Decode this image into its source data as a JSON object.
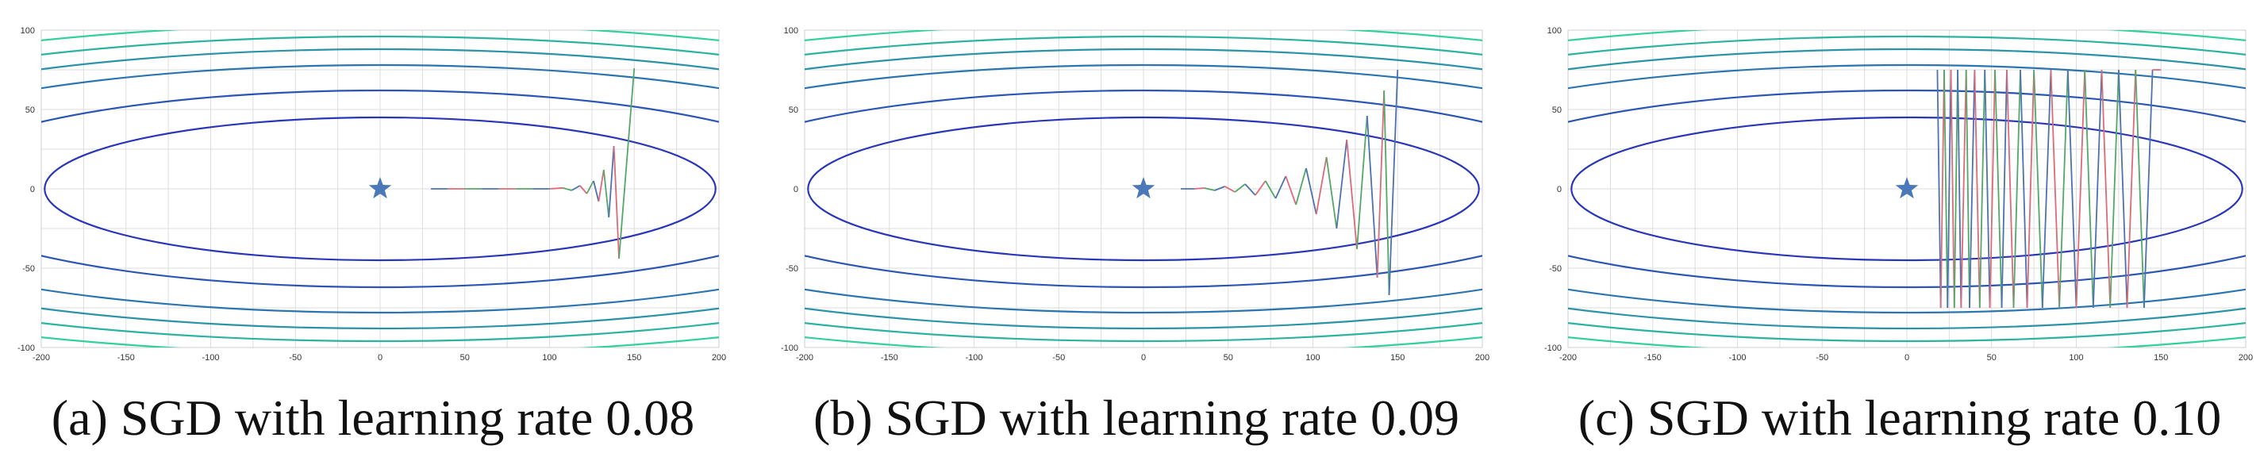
{
  "colors": {
    "grid": "#dddddd",
    "axis_frame": "#cfcfcf",
    "star": "#4a78b8",
    "contours": [
      "#2a36b8",
      "#2a55b4",
      "#2a74b0",
      "#2a93a8",
      "#2bb2a0",
      "#33d09a",
      "#3fe096"
    ],
    "path_segments": [
      "#4c72b0",
      "#dd6a78",
      "#52a866"
    ]
  },
  "contour_levels": [
    45,
    62,
    78,
    88,
    96,
    104,
    112
  ],
  "chart_data": [
    {
      "type": "line",
      "title": "(a) SGD with learning rate 0.08",
      "xlim": [
        -200,
        200
      ],
      "ylim": [
        -100,
        100
      ],
      "xticks": [
        "-200",
        "-150",
        "-100",
        "-50",
        "0",
        "50",
        "100",
        "150",
        "200"
      ],
      "yticks": [
        "100",
        "50",
        "0",
        "-50",
        "-100"
      ],
      "minimum": [
        0,
        0
      ],
      "path": [
        [
          30,
          0
        ],
        [
          40,
          0
        ],
        [
          50,
          0
        ],
        [
          60,
          0
        ],
        [
          70,
          0
        ],
        [
          80,
          0
        ],
        [
          90,
          0
        ],
        [
          100,
          0
        ],
        [
          108,
          0.6
        ],
        [
          113,
          -1
        ],
        [
          118,
          2
        ],
        [
          122,
          -3
        ],
        [
          126,
          5
        ],
        [
          129,
          -8
        ],
        [
          132,
          12
        ],
        [
          135,
          -18
        ],
        [
          138,
          27
        ],
        [
          141,
          -44
        ],
        [
          150,
          76
        ]
      ]
    },
    {
      "type": "line",
      "title": "(b) SGD with learning rate 0.09",
      "xlim": [
        -200,
        200
      ],
      "ylim": [
        -100,
        100
      ],
      "xticks": [
        "-200",
        "-150",
        "-100",
        "-50",
        "0",
        "50",
        "100",
        "150",
        "200"
      ],
      "yticks": [
        "100",
        "50",
        "0",
        "-50",
        "-100"
      ],
      "minimum": [
        0,
        0
      ],
      "path": [
        [
          22,
          0
        ],
        [
          30,
          0
        ],
        [
          36,
          0.5
        ],
        [
          42,
          -1
        ],
        [
          48,
          1.5
        ],
        [
          54,
          -2
        ],
        [
          60,
          3
        ],
        [
          66,
          -4
        ],
        [
          72,
          5
        ],
        [
          78,
          -6
        ],
        [
          84,
          8
        ],
        [
          90,
          -10
        ],
        [
          96,
          13
        ],
        [
          102,
          -16
        ],
        [
          108,
          20
        ],
        [
          114,
          -25
        ],
        [
          120,
          31
        ],
        [
          126,
          -38
        ],
        [
          132,
          46
        ],
        [
          138,
          -56
        ],
        [
          142,
          62
        ],
        [
          145,
          -67
        ],
        [
          150,
          75
        ]
      ]
    },
    {
      "type": "line",
      "title": "(c) SGD with learning rate 0.10",
      "xlim": [
        -200,
        200
      ],
      "ylim": [
        -100,
        100
      ],
      "xticks": [
        "-200",
        "-150",
        "-100",
        "-50",
        "0",
        "50",
        "100",
        "150",
        "200"
      ],
      "yticks": [
        "100",
        "50",
        "0",
        "-50",
        "-100"
      ],
      "minimum": [
        0,
        0
      ],
      "path": [
        [
          18,
          75
        ],
        [
          20,
          -75
        ],
        [
          22,
          75
        ],
        [
          24,
          -75
        ],
        [
          26,
          75
        ],
        [
          28,
          -75
        ],
        [
          30,
          75
        ],
        [
          32,
          -75
        ],
        [
          35,
          75
        ],
        [
          37,
          -75
        ],
        [
          40,
          75
        ],
        [
          43,
          -75
        ],
        [
          46,
          75
        ],
        [
          49,
          -75
        ],
        [
          52,
          75
        ],
        [
          56,
          -75
        ],
        [
          59,
          75
        ],
        [
          63,
          -75
        ],
        [
          67,
          75
        ],
        [
          71,
          -75
        ],
        [
          75,
          75
        ],
        [
          80,
          -75
        ],
        [
          85,
          75
        ],
        [
          90,
          -75
        ],
        [
          95,
          75
        ],
        [
          100,
          -75
        ],
        [
          105,
          75
        ],
        [
          110,
          -75
        ],
        [
          115,
          75
        ],
        [
          120,
          -75
        ],
        [
          125,
          75
        ],
        [
          130,
          -75
        ],
        [
          135,
          75
        ],
        [
          140,
          -75
        ],
        [
          145,
          75
        ],
        [
          150,
          75
        ]
      ]
    }
  ]
}
